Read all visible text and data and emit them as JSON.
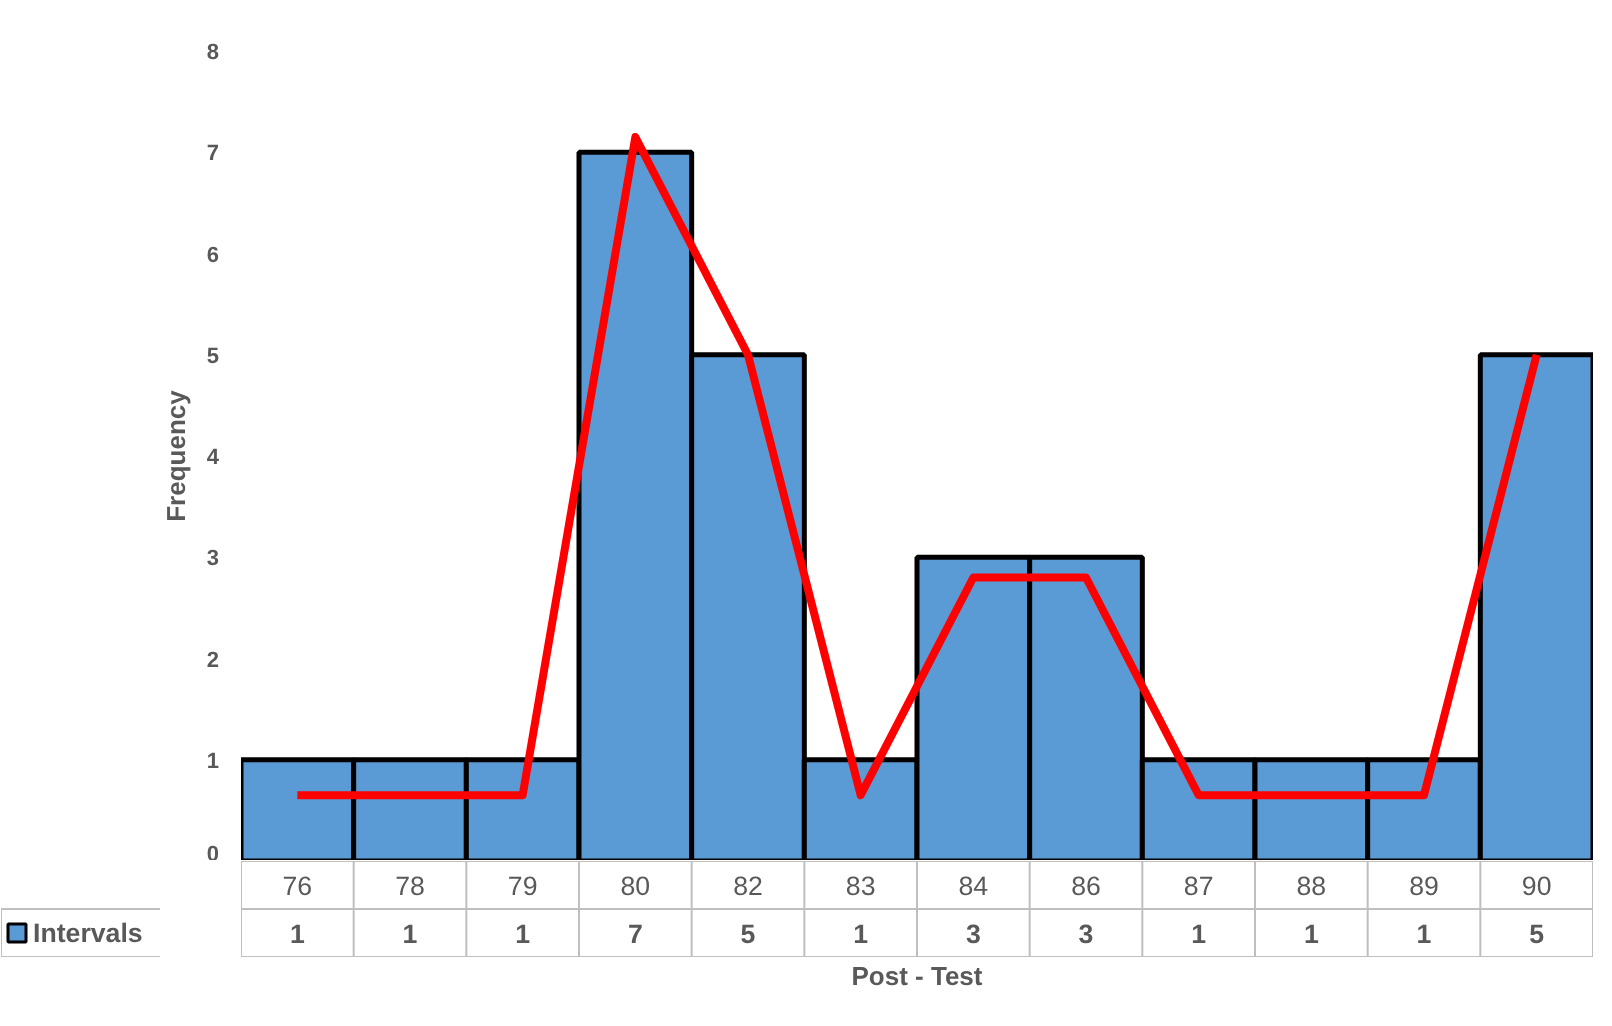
{
  "chart_data": {
    "type": "bar",
    "xlabel": "Post - Test",
    "ylabel": "Frequency",
    "categories": [
      "76",
      "78",
      "79",
      "80",
      "82",
      "83",
      "84",
      "86",
      "87",
      "88",
      "89",
      "90"
    ],
    "series": [
      {
        "name": "Intervals",
        "color": "#5b9bd5",
        "values": [
          1,
          1,
          1,
          7,
          5,
          1,
          3,
          3,
          1,
          1,
          1,
          5
        ],
        "value_labels": [
          "1",
          "1",
          "1",
          "7",
          "5",
          "1",
          "3",
          "3",
          "1",
          "1",
          "1",
          "5"
        ]
      },
      {
        "type": "line",
        "color": "#ff0000",
        "values": [
          0.65,
          0.65,
          0.65,
          7.15,
          5,
          0.65,
          2.8,
          2.8,
          0.65,
          0.65,
          0.65,
          5
        ]
      }
    ],
    "ylim": [
      0,
      8
    ],
    "yticks": [
      0,
      1,
      2,
      3,
      4,
      5,
      6,
      7,
      8
    ],
    "grid": false,
    "legend": "bottom"
  }
}
